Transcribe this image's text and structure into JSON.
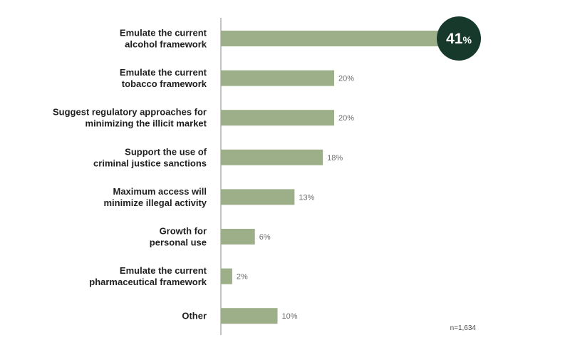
{
  "chart_data": {
    "type": "bar",
    "orientation": "horizontal",
    "categories": [
      [
        "Emulate the current",
        "alcohol framework"
      ],
      [
        "Emulate the current",
        "tobacco framework"
      ],
      [
        "Suggest regulatory approaches for",
        "minimizing the illicit market"
      ],
      [
        "Support the use of",
        "criminal justice sanctions"
      ],
      [
        "Maximum access will",
        "minimize illegal activity"
      ],
      [
        "Growth for",
        "personal use"
      ],
      [
        "Emulate the current",
        "pharmaceutical framework"
      ],
      [
        "Other"
      ]
    ],
    "values": [
      41,
      20,
      20,
      18,
      13,
      6,
      2,
      10
    ],
    "value_labels": [
      "41%",
      "20%",
      "20%",
      "18%",
      "13%",
      "6%",
      "2%",
      "10%"
    ],
    "highlight_index": 0,
    "xlim": [
      0,
      41
    ],
    "grid": false,
    "note": "n=1,634",
    "colors": {
      "bar": "#9caf88",
      "highlight_circle": "#16392c",
      "axis": "#8a8a8a"
    }
  }
}
